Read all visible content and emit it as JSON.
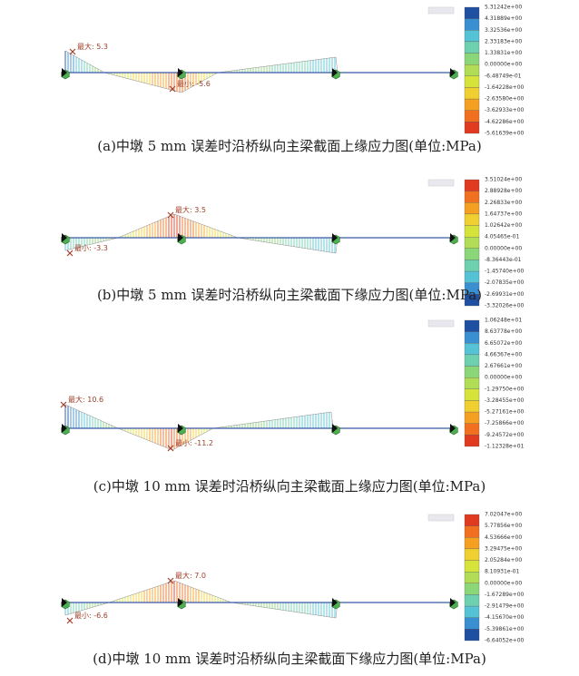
{
  "panels": [
    {
      "legend": [
        "5.31242e+00",
        "4.31889e+00",
        "3.32536e+00",
        "2.33183e+00",
        "1.33831e+00",
        "0.00000e+00",
        "-6.48749e-01",
        "-1.64228e+00",
        "-2.63580e+00",
        "-3.62933e+00",
        "-4.62286e+00",
        "-5.61639e+00"
      ],
      "max_label": "最大: 5.3",
      "min_label": "最小: -5.6",
      "caption": "(a)中墩 5 mm 误差时沿桥纵向主梁截面上缘应力图(单位:MPa)"
    },
    {
      "legend": [
        "3.51024e+00",
        "2.88928e+00",
        "2.26833e+00",
        "1.64737e+00",
        "1.02642e+00",
        "4.05465e-01",
        "0.00000e+00",
        "-8.36443e-01",
        "-1.45740e+00",
        "-2.07835e+00",
        "-2.69931e+00",
        "-3.32026e+00"
      ],
      "max_label": "最大: 3.5",
      "min_label": "最小: -3.3",
      "caption": "(b)中墩 5 mm 误差时沿桥纵向主梁截面下缘应力图(单位:MPa)"
    },
    {
      "legend": [
        "1.06248e+01",
        "8.63778e+00",
        "6.65072e+00",
        "4.66367e+00",
        "2.67661e+00",
        "0.00000e+00",
        "-1.29750e+00",
        "-3.28455e+00",
        "-5.27161e+00",
        "-7.25866e+00",
        "-9.24572e+00",
        "-1.12328e+01"
      ],
      "max_label": "最大: 10.6",
      "min_label": "最小: -11.2",
      "caption": "(c)中墩 10 mm 误差时沿桥纵向主梁截面上缘应力图(单位:MPa)"
    },
    {
      "legend": [
        "7.02047e+00",
        "5.77856e+00",
        "4.53666e+00",
        "3.29475e+00",
        "2.05284e+00",
        "8.10931e-01",
        "0.00000e+00",
        "-1.67289e+00",
        "-2.91479e+00",
        "-4.15670e+00",
        "-5.39861e+00",
        "-6.64052e+00"
      ],
      "max_label": "最大: 7.0",
      "min_label": "最小: -6.6",
      "caption": "(d)中墩 10 mm 误差时沿桥纵向主梁截面下缘应力图(单位:MPa)"
    }
  ]
}
